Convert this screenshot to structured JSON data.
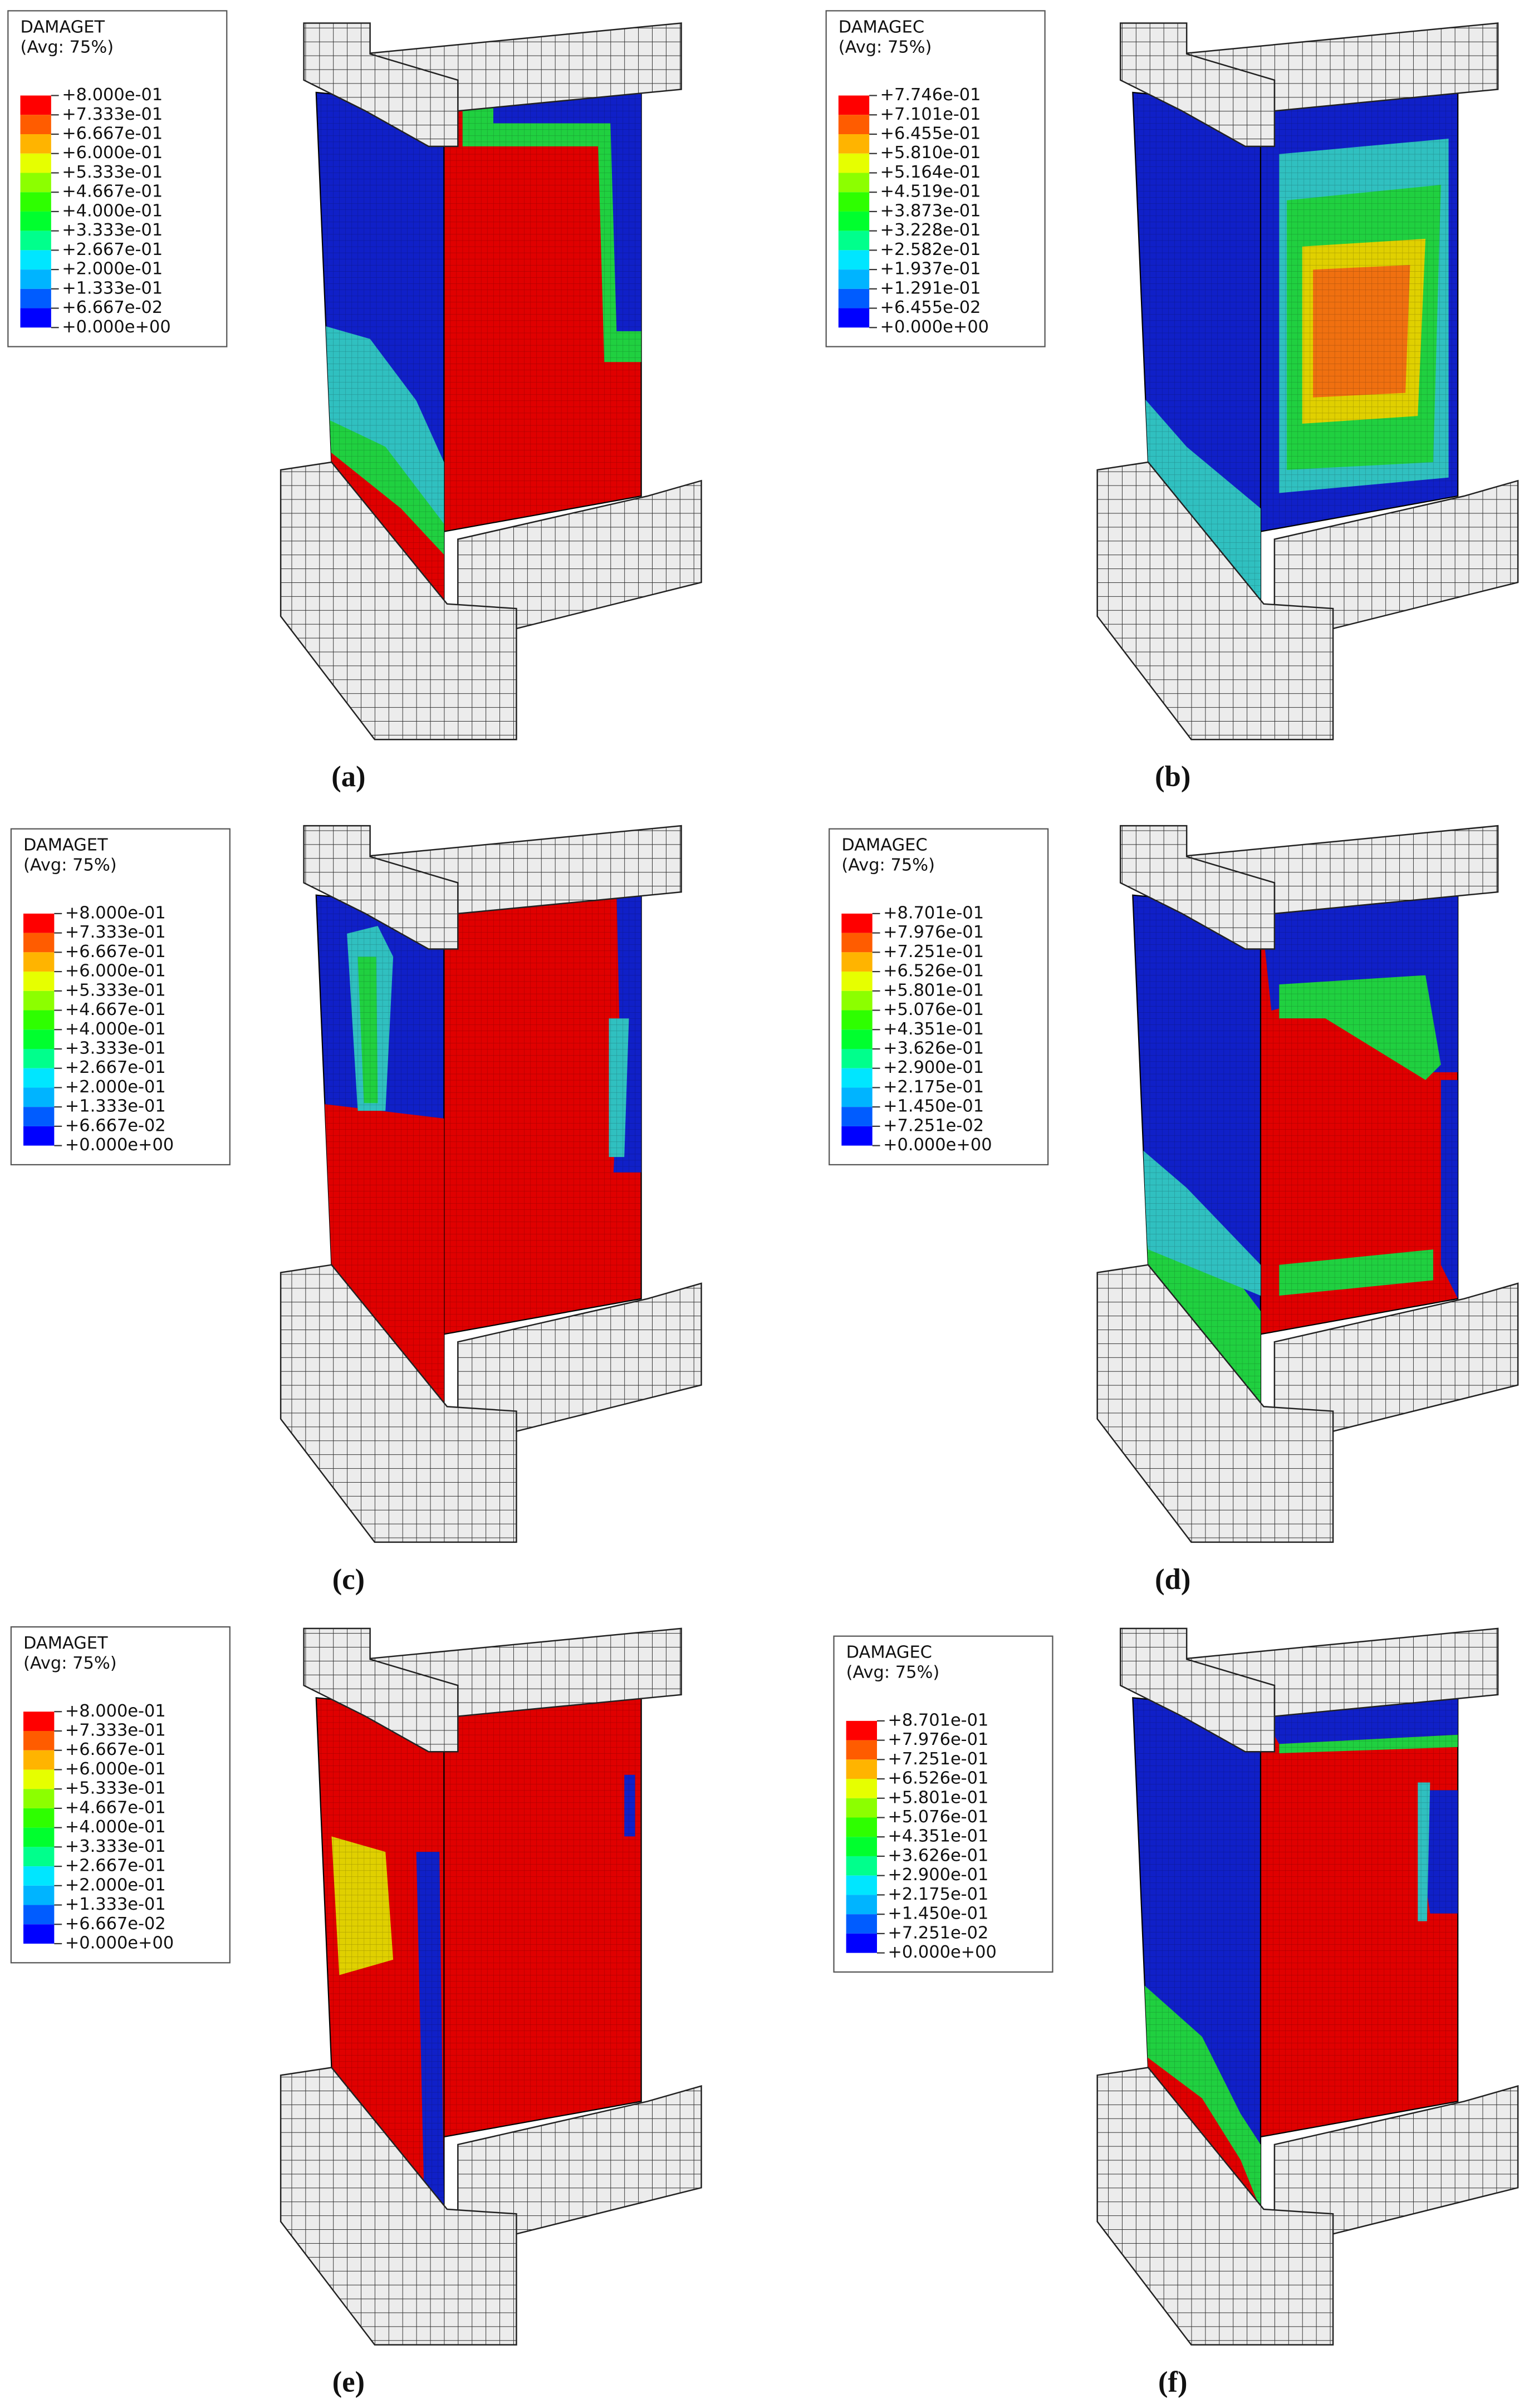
{
  "panels": [
    {
      "variable": "DAMAGET",
      "average": "(Avg: 75%)",
      "levels": [
        "+8.000e-01",
        "+7.333e-01",
        "+6.667e-01",
        "+6.000e-01",
        "+5.333e-01",
        "+4.667e-01",
        "+4.000e-01",
        "+3.333e-01",
        "+2.667e-01",
        "+2.000e-01",
        "+1.333e-01",
        "+6.667e-02",
        "+0.000e+00"
      ],
      "caption": "(a)"
    },
    {
      "variable": "DAMAGEC",
      "average": "(Avg: 75%)",
      "levels": [
        "+7.746e-01",
        "+7.101e-01",
        "+6.455e-01",
        "+5.810e-01",
        "+5.164e-01",
        "+4.519e-01",
        "+3.873e-01",
        "+3.228e-01",
        "+2.582e-01",
        "+1.937e-01",
        "+1.291e-01",
        "+6.455e-02",
        "+0.000e+00"
      ],
      "caption": "(b)"
    },
    {
      "variable": "DAMAGET",
      "average": "(Avg: 75%)",
      "levels": [
        "+8.000e-01",
        "+7.333e-01",
        "+6.667e-01",
        "+6.000e-01",
        "+5.333e-01",
        "+4.667e-01",
        "+4.000e-01",
        "+3.333e-01",
        "+2.667e-01",
        "+2.000e-01",
        "+1.333e-01",
        "+6.667e-02",
        "+0.000e+00"
      ],
      "caption": "(c)"
    },
    {
      "variable": "DAMAGEC",
      "average": "(Avg: 75%)",
      "levels": [
        "+8.701e-01",
        "+7.976e-01",
        "+7.251e-01",
        "+6.526e-01",
        "+5.801e-01",
        "+5.076e-01",
        "+4.351e-01",
        "+3.626e-01",
        "+2.900e-01",
        "+2.175e-01",
        "+1.450e-01",
        "+7.251e-02",
        "+0.000e+00"
      ],
      "caption": "(d)"
    },
    {
      "variable": "DAMAGET",
      "average": "(Avg: 75%)",
      "levels": [
        "+8.000e-01",
        "+7.333e-01",
        "+6.667e-01",
        "+6.000e-01",
        "+5.333e-01",
        "+4.667e-01",
        "+4.000e-01",
        "+3.333e-01",
        "+2.667e-01",
        "+2.000e-01",
        "+1.333e-01",
        "+6.667e-02",
        "+0.000e+00"
      ],
      "caption": "(e)"
    },
    {
      "variable": "DAMAGEC",
      "average": "(Avg: 75%)",
      "levels": [
        "+8.701e-01",
        "+7.976e-01",
        "+7.251e-01",
        "+6.526e-01",
        "+5.801e-01",
        "+5.076e-01",
        "+4.351e-01",
        "+3.626e-01",
        "+2.900e-01",
        "+2.175e-01",
        "+1.450e-01",
        "+7.251e-02",
        "+0.000e+00"
      ],
      "caption": "(f)"
    }
  ]
}
